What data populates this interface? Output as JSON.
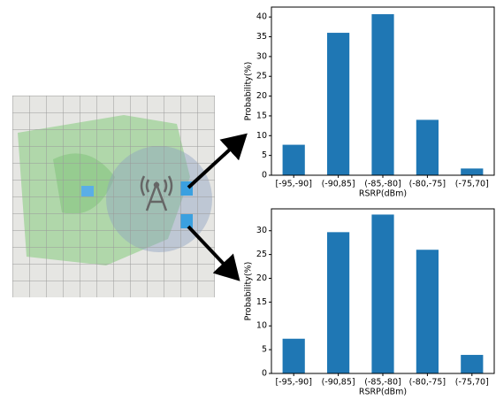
{
  "chart_data": [
    {
      "type": "bar",
      "x_label": "RSRP(dBm)",
      "y_label": "Probability(%)",
      "categories": [
        "[-95,-90]",
        "(-90,85]",
        "(-85,-80]",
        "(-80,-75]",
        "(-75,70]"
      ],
      "values": [
        7.7,
        36,
        40.7,
        14,
        1.7
      ],
      "color": "#1f77b4",
      "ylim": [
        0,
        42.5
      ],
      "yticks": [
        0,
        5,
        10,
        15,
        20,
        25,
        30,
        35,
        40
      ]
    },
    {
      "type": "bar",
      "x_label": "RSRP(dBm)",
      "y_label": "Probability(%)",
      "categories": [
        "[-95,-90]",
        "(-90,85]",
        "(-85,-80]",
        "(-80,-75]",
        "(-75,70]"
      ],
      "values": [
        7.3,
        29.7,
        33.4,
        26,
        3.9
      ],
      "color": "#1f77b4",
      "ylim": [
        0,
        34.6
      ],
      "yticks": [
        0,
        5,
        10,
        15,
        20,
        25,
        30
      ]
    }
  ]
}
